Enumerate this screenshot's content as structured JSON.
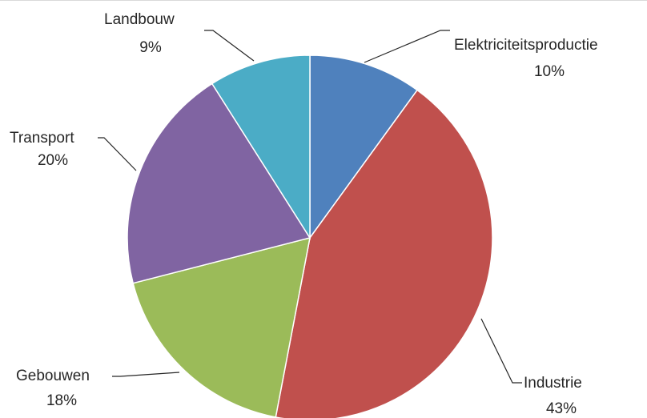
{
  "chart_data": {
    "type": "pie",
    "title": "",
    "slices": [
      {
        "name": "Elektriciteitsproductie",
        "value": 10,
        "value_label": "10%",
        "color": "#4f81bd"
      },
      {
        "name": "Industrie",
        "value": 43,
        "value_label": "43%",
        "color": "#c0504d"
      },
      {
        "name": "Gebouwen",
        "value": 18,
        "value_label": "18%",
        "color": "#9bbb59"
      },
      {
        "name": "Transport",
        "value": 20,
        "value_label": "20%",
        "color": "#8064a2"
      },
      {
        "name": "Landbouw",
        "value": 9,
        "value_label": "9%",
        "color": "#4bacc6"
      }
    ],
    "start_angle": "12 o'clock",
    "direction": "clockwise",
    "legend": "none",
    "data_labels": "outside with leader lines"
  }
}
